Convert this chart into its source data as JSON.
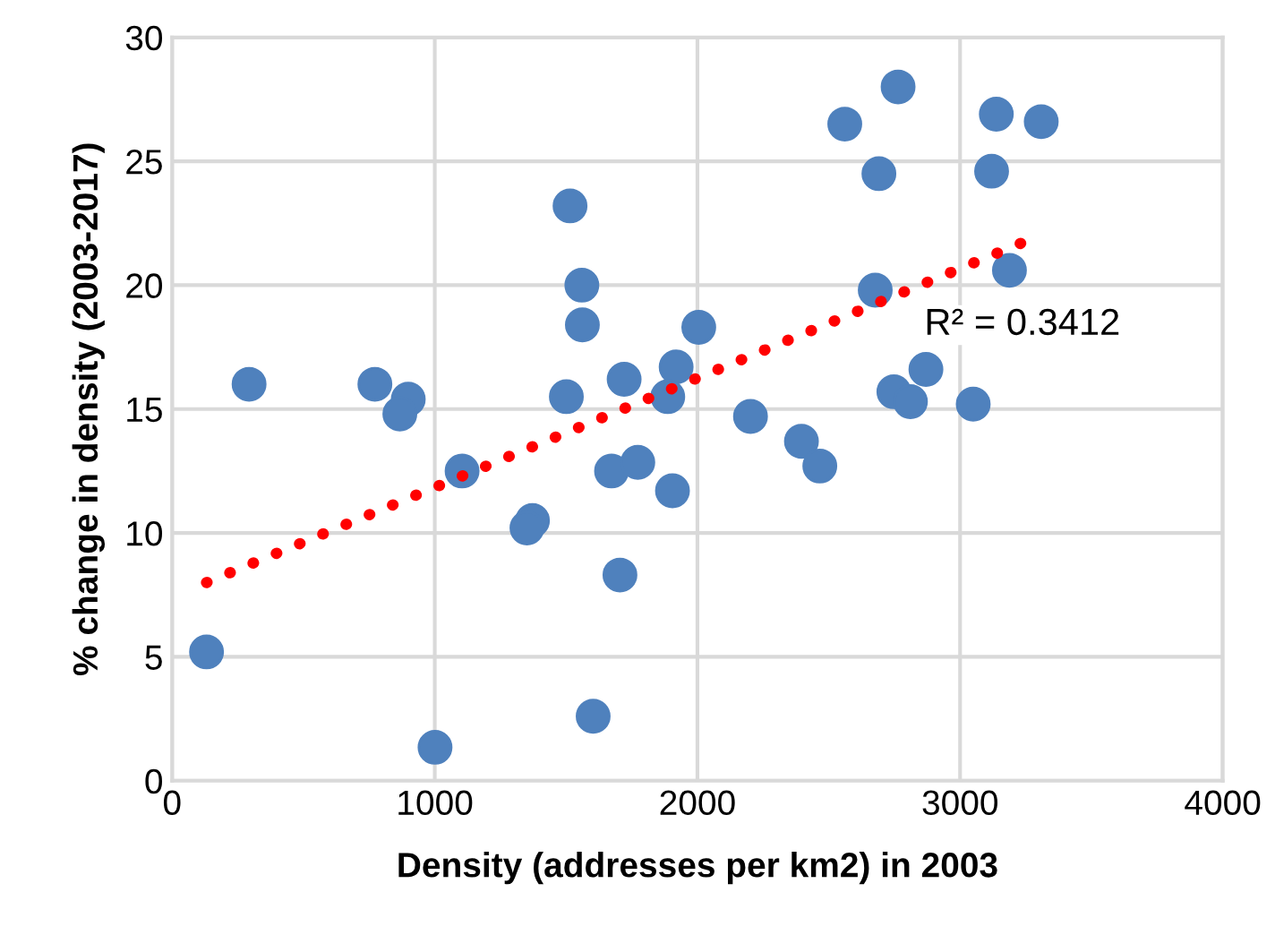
{
  "chart_data": {
    "type": "scatter",
    "xlabel": "Density (addresses per km2) in 2003",
    "ylabel": "% change in density (2003-2017)",
    "xlim": [
      0,
      4000
    ],
    "xticks": [
      0,
      1000,
      2000,
      3000,
      4000
    ],
    "ylim": [
      0,
      30
    ],
    "yticks": [
      0,
      5,
      10,
      15,
      20,
      25,
      30
    ],
    "grid": true,
    "series": [
      {
        "color": "#4f81bd",
        "marker": "circle",
        "x": [
          131,
          293,
          772,
          899,
          867,
          1104,
          1001,
          1515,
          1560,
          1562,
          1501,
          1721,
          1372,
          1351,
          1673,
          1773,
          1905,
          1705,
          1603,
          1919,
          1887,
          2005,
          2202,
          2396,
          2466,
          2561,
          2764,
          2691,
          2677,
          2748,
          2811,
          2870,
          3050,
          3138,
          3120,
          3309,
          3188
        ],
        "values": [
          5.2,
          16.0,
          16.0,
          15.4,
          14.8,
          12.5,
          1.35,
          23.2,
          20.0,
          18.4,
          15.5,
          16.2,
          10.5,
          10.2,
          12.5,
          12.85,
          11.7,
          8.3,
          2.6,
          16.7,
          15.5,
          18.3,
          14.7,
          13.7,
          12.7,
          26.5,
          28.0,
          24.5,
          19.8,
          15.7,
          15.3,
          16.6,
          15.2,
          26.9,
          24.6,
          26.6,
          20.6
        ]
      },
      {
        "type": "line",
        "color": "#ff0000",
        "line_style": "dotted",
        "marker": "none",
        "x": [
          131,
          3256
        ],
        "values": [
          8.0,
          21.8
        ]
      }
    ],
    "annotations": [
      "R² = 0.3412"
    ]
  }
}
